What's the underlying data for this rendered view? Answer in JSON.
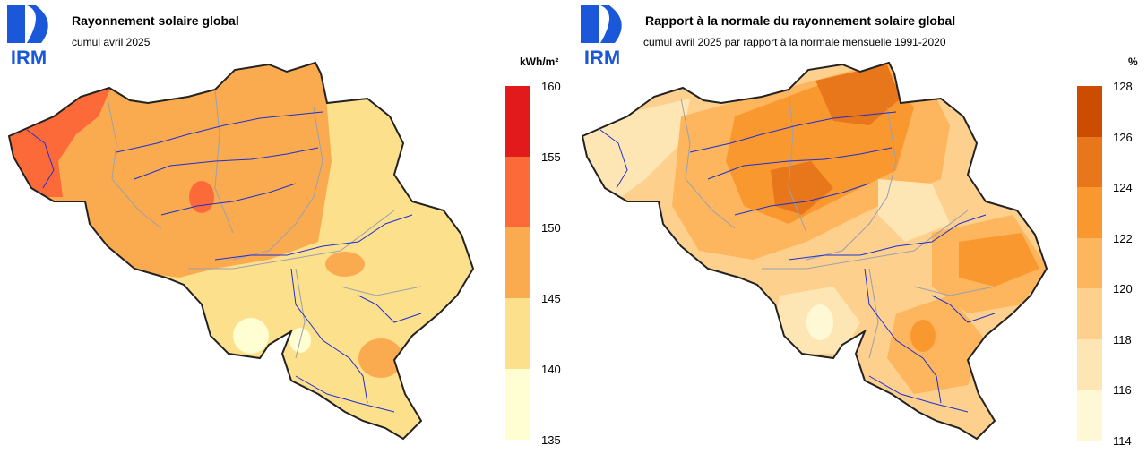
{
  "left_panel": {
    "logo_text": "IRM",
    "title": "Rayonnement solaire global",
    "subtitle": "cumul avril 2025",
    "unit": "kWh/m²",
    "legend": {
      "ticks": [
        "160",
        "155",
        "150",
        "145",
        "140",
        "135"
      ],
      "colors": [
        "#e31a1c",
        "#fd6a3a",
        "#fbab4f",
        "#fde08c",
        "#fffdd2"
      ]
    }
  },
  "right_panel": {
    "logo_text": "IRM",
    "title": "Rapport à la normale du rayonnement solaire global",
    "subtitle": "cumul avril 2025 par rapport à la normale mensuelle 1991-2020",
    "unit": "%",
    "legend": {
      "ticks": [
        "128",
        "126",
        "124",
        "122",
        "120",
        "118",
        "116",
        "114"
      ],
      "colors": [
        "#cc4c02",
        "#e8761b",
        "#f9982f",
        "#fdb55e",
        "#fdd08e",
        "#fee6b4",
        "#fff8d4"
      ]
    }
  }
}
